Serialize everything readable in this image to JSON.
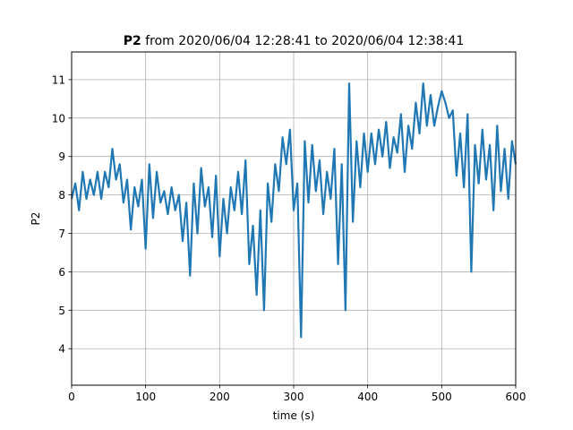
{
  "chart_data": {
    "type": "line",
    "title_bold": "P2",
    "title_rest": " from 2020/06/04 12:28:41 to 2020/06/04 12:38:41",
    "xlabel": "time (s)",
    "ylabel": "P2",
    "xlim": [
      0,
      600
    ],
    "ylim": [
      3.05,
      11.72
    ],
    "xticks": [
      0,
      100,
      200,
      300,
      400,
      500,
      600
    ],
    "yticks": [
      4,
      5,
      6,
      7,
      8,
      9,
      10,
      11
    ],
    "grid": true,
    "line_color": "#1f77b4",
    "series": [
      {
        "x": [
          0,
          5,
          10,
          15,
          20,
          25,
          30,
          35,
          40,
          45,
          50,
          55,
          60,
          65,
          70,
          75,
          80,
          85,
          90,
          95,
          100,
          105,
          110,
          115,
          120,
          125,
          130,
          135,
          140,
          145,
          150,
          155,
          160,
          165,
          170,
          175,
          180,
          185,
          190,
          195,
          200,
          205,
          210,
          215,
          220,
          225,
          230,
          235,
          240,
          245,
          250,
          255,
          260,
          265,
          270,
          275,
          280,
          285,
          290,
          295,
          300,
          305,
          310,
          315,
          320,
          325,
          330,
          335,
          340,
          345,
          350,
          355,
          360,
          365,
          370,
          375,
          380,
          385,
          390,
          395,
          400,
          405,
          410,
          415,
          420,
          425,
          430,
          435,
          440,
          445,
          450,
          455,
          460,
          465,
          470,
          475,
          480,
          485,
          490,
          495,
          500,
          505,
          510,
          515,
          520,
          525,
          530,
          535,
          540,
          545,
          550,
          555,
          560,
          565,
          570,
          575,
          580,
          585,
          590,
          595,
          600
        ],
        "y": [
          7.9,
          8.3,
          7.6,
          8.6,
          7.9,
          8.4,
          8.0,
          8.6,
          7.9,
          8.6,
          8.2,
          9.2,
          8.4,
          8.8,
          7.8,
          8.4,
          7.1,
          8.2,
          7.7,
          8.4,
          6.6,
          8.8,
          7.4,
          8.6,
          7.8,
          8.1,
          7.5,
          8.2,
          7.6,
          8.0,
          6.8,
          7.8,
          5.9,
          8.3,
          7.0,
          8.7,
          7.7,
          8.2,
          6.9,
          8.5,
          6.4,
          7.9,
          7.0,
          8.2,
          7.6,
          8.6,
          7.5,
          8.9,
          6.2,
          7.2,
          5.4,
          7.6,
          5.0,
          8.3,
          7.3,
          8.8,
          8.1,
          9.5,
          8.8,
          9.7,
          7.6,
          8.3,
          4.3,
          9.4,
          7.8,
          9.3,
          8.1,
          8.9,
          7.5,
          8.6,
          7.9,
          9.2,
          6.2,
          8.8,
          5.0,
          10.9,
          7.3,
          9.4,
          8.2,
          9.6,
          8.6,
          9.6,
          8.8,
          9.7,
          9.0,
          9.9,
          8.7,
          9.5,
          9.1,
          10.1,
          8.6,
          9.8,
          9.2,
          10.4,
          9.6,
          10.9,
          9.8,
          10.6,
          9.8,
          10.3,
          10.7,
          10.4,
          10.0,
          10.2,
          8.5,
          9.6,
          8.2,
          10.1,
          6.0,
          9.3,
          8.3,
          9.7,
          8.4,
          9.3,
          7.6,
          9.8,
          8.1,
          9.2,
          7.9,
          9.4,
          8.8
        ]
      }
    ]
  }
}
